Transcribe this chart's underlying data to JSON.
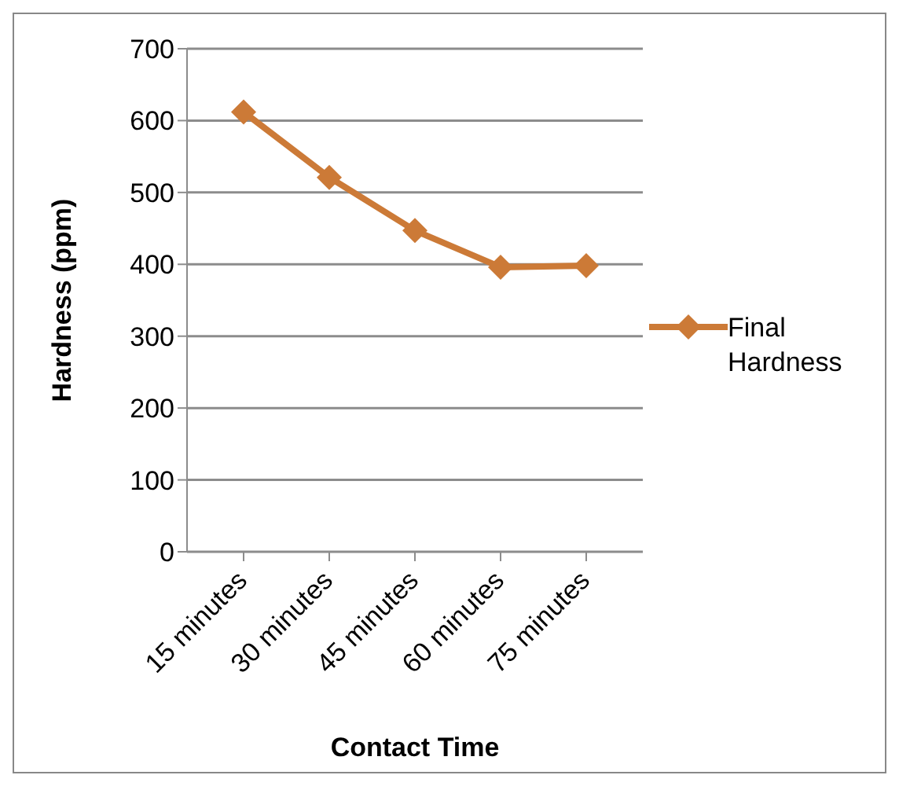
{
  "chart_data": {
    "type": "line",
    "xlabel": "Contact Time",
    "ylabel": "Hardness (ppm)",
    "categories": [
      "15 minutes",
      "30 minutes",
      "45 minutes",
      "60 minutes",
      "75 minutes"
    ],
    "series": [
      {
        "name": "Final Hardness",
        "color": "#cc7a37",
        "values": [
          612,
          521,
          447,
          396,
          398
        ]
      }
    ],
    "ylim": [
      0,
      700
    ],
    "yticks": [
      0,
      100,
      200,
      300,
      400,
      500,
      600,
      700
    ],
    "grid": "y",
    "legend": "right",
    "marker": "diamond",
    "line_style": "solid"
  }
}
